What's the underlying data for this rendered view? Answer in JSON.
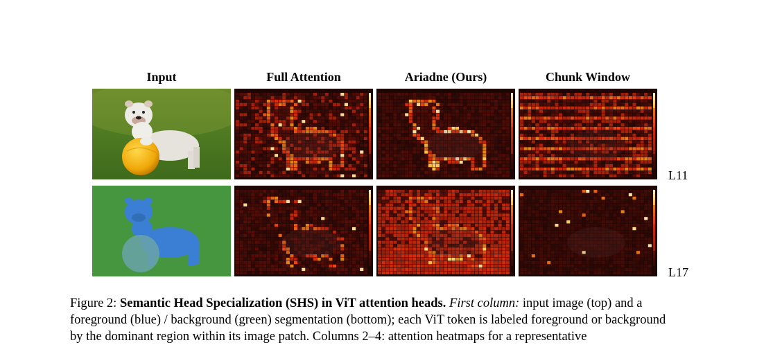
{
  "figure": {
    "columns": [
      "Input",
      "Full Attention",
      "Ariadne (Ours)",
      "Chunk Window"
    ],
    "rows": [
      "L11",
      "L17"
    ],
    "panels": {
      "r1": [
        "input image: bulldog on yellow ball on grass",
        "attention heatmap",
        "attention heatmap",
        "attention heatmap"
      ],
      "r2": [
        "foreground (blue) / background (green) segmentation",
        "attention heatmap",
        "attention heatmap",
        "attention heatmap"
      ]
    },
    "caption": {
      "label": "Figure 2: ",
      "title": "Semantic Head Specialization (SHS) in ViT attention heads.",
      "first_col_label": "First column:",
      "line1_rest": " input image (top) and a",
      "line2": "foreground (blue) / background (green) segmentation (bottom); each ViT token is labeled foreground or background",
      "line3": "by the dominant region within its image patch. Columns 2–4: attention heatmaps for a representative"
    },
    "colors": {
      "heatmap_dark": "#1a0604",
      "heatmap_mid": "#b3200e",
      "heatmap_hot": "#ffd23a",
      "foreground_overlay": "#3e7fd6",
      "background_overlay": "#3a9a3a"
    }
  }
}
